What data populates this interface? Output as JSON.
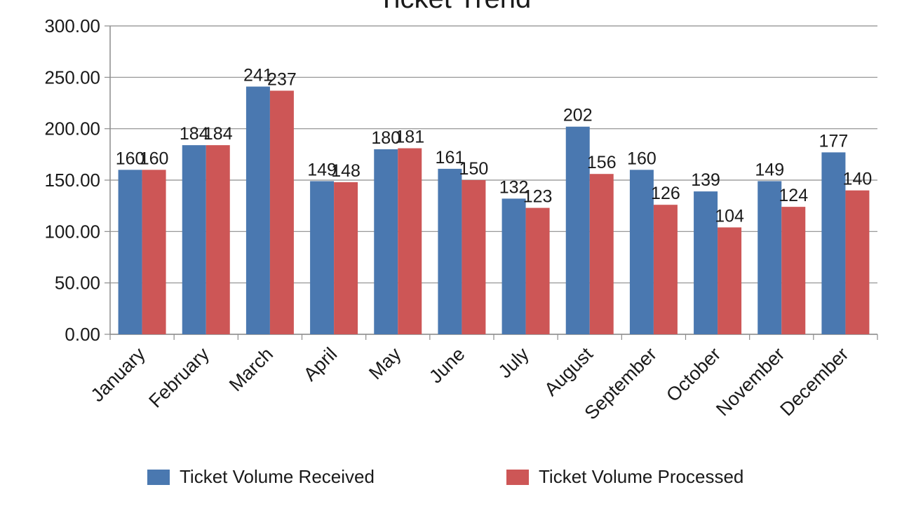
{
  "chart_data": {
    "type": "bar",
    "title": "Ticket Trend",
    "categories": [
      "January",
      "February",
      "March",
      "April",
      "May",
      "June",
      "July",
      "August",
      "September",
      "October",
      "November",
      "December"
    ],
    "series": [
      {
        "name": "Ticket Volume Received",
        "color": "#4a78b0",
        "values": [
          160,
          184,
          241,
          149,
          180,
          161,
          132,
          202,
          160,
          139,
          149,
          177
        ]
      },
      {
        "name": "Ticket Volume Processed",
        "color": "#cd5656",
        "values": [
          160,
          184,
          237,
          148,
          181,
          150,
          123,
          156,
          126,
          104,
          124,
          140
        ]
      }
    ],
    "yticks": [
      "0.00",
      "50.00",
      "100.00",
      "150.00",
      "200.00",
      "250.00",
      "300.00"
    ],
    "ylim": [
      0,
      300
    ],
    "grid": true,
    "legend_position": "bottom"
  }
}
